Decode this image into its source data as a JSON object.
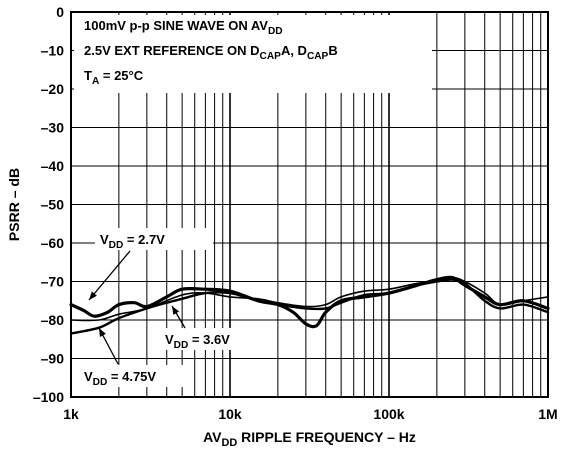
{
  "chart_data": {
    "type": "line",
    "xlabel_parts": [
      "AV",
      "DD",
      " RIPPLE FREQUENCY – Hz"
    ],
    "ylabel": "PSRR – dB",
    "x_scale": "log",
    "xlim": [
      1000,
      1000000
    ],
    "ylim": [
      -100,
      0
    ],
    "grid": true,
    "x_ticks": [
      {
        "value": 1000,
        "label": "1k"
      },
      {
        "value": 10000,
        "label": "10k"
      },
      {
        "value": 100000,
        "label": "100k"
      },
      {
        "value": 1000000,
        "label": "1M"
      }
    ],
    "y_ticks": [
      {
        "value": 0,
        "label": "0"
      },
      {
        "value": -10,
        "label": "–10"
      },
      {
        "value": -20,
        "label": "–20"
      },
      {
        "value": -30,
        "label": "–30"
      },
      {
        "value": -40,
        "label": "–40"
      },
      {
        "value": -50,
        "label": "–50"
      },
      {
        "value": -60,
        "label": "–60"
      },
      {
        "value": -70,
        "label": "–70"
      },
      {
        "value": -80,
        "label": "–80"
      },
      {
        "value": -90,
        "label": "–90"
      },
      {
        "value": -100,
        "label": "–100"
      }
    ],
    "conditions": [
      {
        "parts": [
          "100mV p-p SINE WAVE ON AV",
          "DD"
        ]
      },
      {
        "parts": [
          "2.5V EXT REFERENCE ON D",
          "CAP",
          "A, D",
          "CAP",
          "B"
        ]
      },
      {
        "parts": [
          "T",
          "A",
          " = 25°C"
        ]
      }
    ],
    "series": [
      {
        "name_parts": [
          "V",
          "DD",
          " = 2.7V"
        ],
        "x": [
          1000,
          1200,
          1400,
          1700,
          2000,
          2500,
          3000,
          4000,
          5000,
          7000,
          10000,
          15000,
          20000,
          25000,
          30000,
          35000,
          40000,
          50000,
          70000,
          100000,
          150000,
          200000,
          250000,
          300000,
          400000,
          500000,
          700000,
          1000000
        ],
        "y": [
          -76,
          -77.5,
          -79,
          -78,
          -76,
          -75.5,
          -76.5,
          -74,
          -72,
          -72,
          -72.5,
          -75,
          -76,
          -78,
          -81,
          -81.5,
          -78,
          -75,
          -74,
          -73,
          -71,
          -69.5,
          -69,
          -71,
          -74,
          -76,
          -75,
          -77
        ],
        "width": 3.2
      },
      {
        "name_parts": [
          "V",
          "DD",
          " = 3.6V"
        ],
        "x": [
          1000,
          1500,
          2000,
          3000,
          5000,
          7000,
          10000,
          15000,
          20000,
          30000,
          40000,
          50000,
          70000,
          100000,
          150000,
          200000,
          250000,
          300000,
          400000,
          500000,
          700000,
          1000000
        ],
        "y": [
          -80,
          -80,
          -78.5,
          -77,
          -73.5,
          -73,
          -74,
          -74.5,
          -75.5,
          -76.5,
          -76,
          -74,
          -72.5,
          -72,
          -70.5,
          -70,
          -69,
          -70,
          -73,
          -76,
          -75,
          -74
        ],
        "width": 1.6
      },
      {
        "name_parts": [
          "V",
          "DD",
          " = 4.75V"
        ],
        "x": [
          1000,
          1500,
          2000,
          3000,
          4000,
          5000,
          7000,
          10000,
          15000,
          20000,
          30000,
          40000,
          50000,
          70000,
          100000,
          150000,
          200000,
          250000,
          300000,
          400000,
          500000,
          700000,
          1000000
        ],
        "y": [
          -83.5,
          -82,
          -79.5,
          -77,
          -75.5,
          -74.5,
          -73,
          -73,
          -75,
          -76,
          -77,
          -77,
          -75.5,
          -73.5,
          -73,
          -71,
          -70,
          -69.5,
          -70.5,
          -75,
          -77,
          -76,
          -78
        ],
        "width": 2.4
      }
    ]
  }
}
